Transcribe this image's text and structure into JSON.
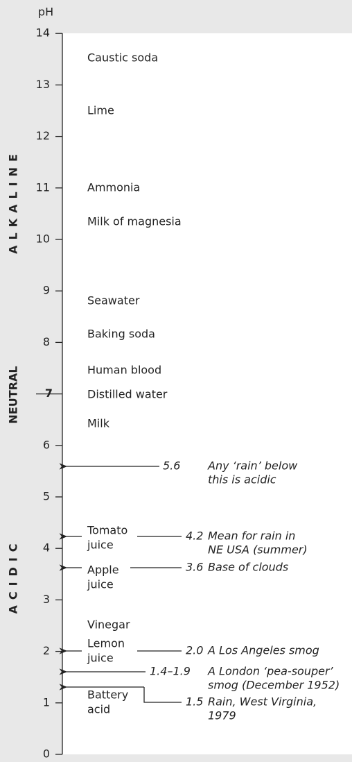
{
  "axis_label": "pH",
  "ticks": [
    0,
    1,
    2,
    3,
    4,
    5,
    6,
    7,
    8,
    9,
    10,
    11,
    12,
    13,
    14
  ],
  "zones": [
    "ALKALINE",
    "NEUTRAL",
    "ACIDIC"
  ],
  "substances": [
    [
      "Caustic soda"
    ],
    [
      "Lime"
    ],
    [
      "Ammonia"
    ],
    [
      "Milk of magnesia"
    ],
    [
      "Seawater"
    ],
    [
      "Baking soda"
    ],
    [
      "Human blood"
    ],
    [
      "Distilled water"
    ],
    [
      "Milk"
    ],
    [
      "Tomato",
      "juice"
    ],
    [
      "Apple",
      "juice"
    ],
    [
      "Vinegar"
    ],
    [
      "Lemon",
      "juice"
    ],
    [
      "Battery",
      "acid"
    ]
  ],
  "annotations": [
    {
      "value": "5.6",
      "text": [
        "Any ‘rain’ below",
        "this is acidic"
      ]
    },
    {
      "value": "4.2",
      "text": [
        "Mean for rain in",
        "NE USA (summer)"
      ]
    },
    {
      "value": "3.6",
      "text": [
        "Base of clouds"
      ]
    },
    {
      "value": "2.0",
      "text": [
        "A Los Angeles smog"
      ]
    },
    {
      "value": "1.4–1.9",
      "text": [
        "A London ‘pea-souper’",
        "smog (December 1952)"
      ]
    },
    {
      "value": "1.5",
      "text": [
        "Rain, West Virginia,",
        "1979"
      ]
    }
  ]
}
